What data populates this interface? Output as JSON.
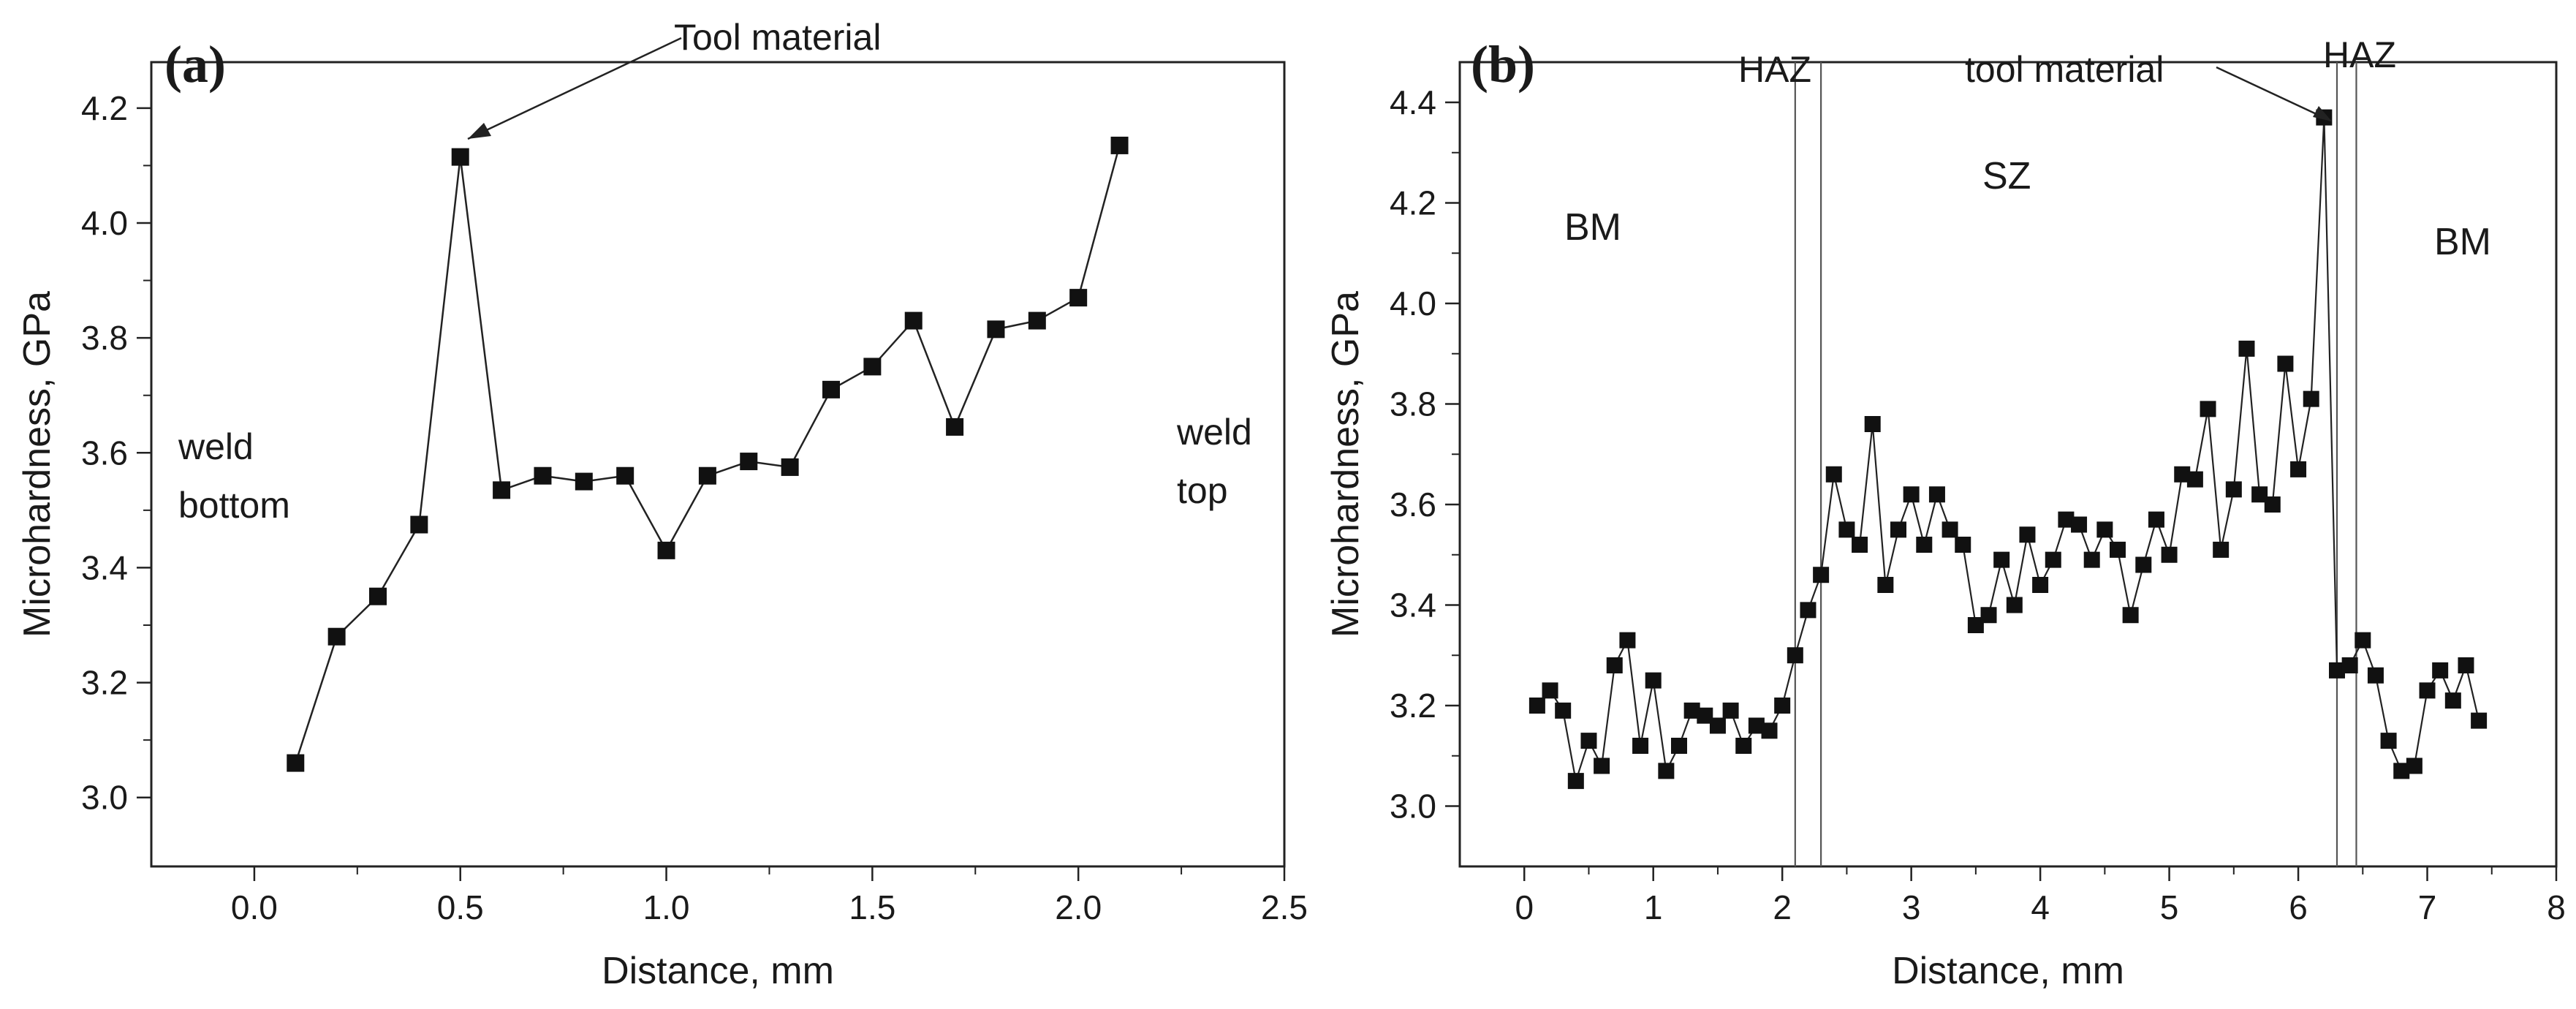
{
  "chart_data": [
    {
      "type": "line",
      "panel_label": "(a)",
      "xlabel": "Distance, mm",
      "ylabel": "Microhardness, GPa",
      "xlim": [
        -0.25,
        2.5
      ],
      "ylim": [
        2.88,
        4.28
      ],
      "xticks": [
        "0.0",
        "0.5",
        "1.0",
        "1.5",
        "2.0",
        "2.5"
      ],
      "xtick_values": [
        0.0,
        0.5,
        1.0,
        1.5,
        2.0,
        2.5
      ],
      "yticks": [
        "3.0",
        "3.2",
        "3.4",
        "3.6",
        "3.8",
        "4.0",
        "4.2"
      ],
      "ytick_values": [
        3.0,
        3.2,
        3.4,
        3.6,
        3.8,
        4.0,
        4.2
      ],
      "series": [
        {
          "name": "microhardness",
          "x": [
            0.1,
            0.2,
            0.3,
            0.4,
            0.5,
            0.6,
            0.7,
            0.8,
            0.9,
            1.0,
            1.1,
            1.2,
            1.3,
            1.4,
            1.5,
            1.6,
            1.7,
            1.8,
            1.9,
            2.0,
            2.1
          ],
          "y": [
            3.06,
            3.28,
            3.35,
            3.475,
            4.115,
            3.535,
            3.56,
            3.55,
            3.56,
            3.43,
            3.56,
            3.585,
            3.575,
            3.71,
            3.75,
            3.83,
            3.645,
            3.815,
            3.83,
            3.87,
            4.135
          ]
        }
      ],
      "annotations": {
        "left_region": [
          "weld",
          "bottom"
        ],
        "right_region": [
          "weld",
          "top"
        ],
        "arrow_label": "Tool material",
        "arrow_target": {
          "x": 0.5,
          "y": 4.115
        }
      },
      "vlines": []
    },
    {
      "type": "line",
      "panel_label": "(b)",
      "xlabel": "Distance, mm",
      "ylabel": "Microhardness, GPa",
      "xlim": [
        -0.5,
        8
      ],
      "ylim": [
        2.88,
        4.48
      ],
      "xticks": [
        "0",
        "1",
        "2",
        "3",
        "4",
        "5",
        "6",
        "7",
        "8"
      ],
      "xtick_values": [
        0,
        1,
        2,
        3,
        4,
        5,
        6,
        7,
        8
      ],
      "yticks": [
        "3.0",
        "3.2",
        "3.4",
        "3.6",
        "3.8",
        "4.0",
        "4.2",
        "4.4"
      ],
      "ytick_values": [
        3.0,
        3.2,
        3.4,
        3.6,
        3.8,
        4.0,
        4.2,
        4.4
      ],
      "series": [
        {
          "name": "microhardness",
          "x": [
            0.1,
            0.2,
            0.3,
            0.4,
            0.5,
            0.6,
            0.7,
            0.8,
            0.9,
            1.0,
            1.1,
            1.2,
            1.3,
            1.4,
            1.5,
            1.6,
            1.7,
            1.8,
            1.9,
            2.0,
            2.1,
            2.2,
            2.3,
            2.4,
            2.5,
            2.6,
            2.7,
            2.8,
            2.9,
            3.0,
            3.1,
            3.2,
            3.3,
            3.4,
            3.5,
            3.6,
            3.7,
            3.8,
            3.9,
            4.0,
            4.1,
            4.2,
            4.3,
            4.4,
            4.5,
            4.6,
            4.7,
            4.8,
            4.9,
            5.0,
            5.1,
            5.2,
            5.3,
            5.4,
            5.5,
            5.6,
            5.7,
            5.8,
            5.9,
            6.0,
            6.1,
            6.2,
            6.3,
            6.4,
            6.5,
            6.6,
            6.7,
            6.8,
            6.9,
            7.0,
            7.1,
            7.2,
            7.3,
            7.4
          ],
          "y": [
            3.2,
            3.23,
            3.19,
            3.05,
            3.13,
            3.08,
            3.28,
            3.33,
            3.12,
            3.25,
            3.07,
            3.12,
            3.19,
            3.18,
            3.16,
            3.19,
            3.12,
            3.16,
            3.15,
            3.2,
            3.3,
            3.39,
            3.46,
            3.66,
            3.55,
            3.52,
            3.76,
            3.44,
            3.55,
            3.62,
            3.52,
            3.62,
            3.55,
            3.52,
            3.36,
            3.38,
            3.49,
            3.4,
            3.54,
            3.44,
            3.49,
            3.57,
            3.56,
            3.49,
            3.55,
            3.51,
            3.38,
            3.48,
            3.57,
            3.5,
            3.66,
            3.65,
            3.79,
            3.51,
            3.63,
            3.91,
            3.62,
            3.6,
            3.88,
            3.67,
            3.81,
            4.37,
            3.27,
            3.28,
            3.33,
            3.26,
            3.13,
            3.07,
            3.08,
            3.23,
            3.27,
            3.21,
            3.28,
            3.17
          ]
        }
      ],
      "annotations": {
        "zone_labels": [
          "BM",
          "SZ",
          "BM"
        ],
        "haz_labels": [
          "HAZ",
          "HAZ"
        ],
        "arrow_label": "tool material",
        "arrow_target": {
          "x": 6.2,
          "y": 4.37
        }
      },
      "vlines": [
        2.1,
        2.3,
        6.3,
        6.45
      ]
    }
  ]
}
